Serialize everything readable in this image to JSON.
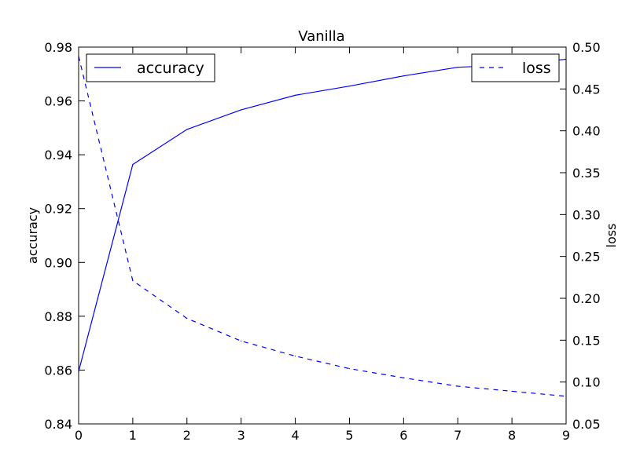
{
  "chart_data": {
    "type": "line",
    "title": "Vanilla",
    "xlabel": "",
    "x": [
      0,
      1,
      2,
      3,
      4,
      5,
      6,
      7,
      8,
      9
    ],
    "x_ticks": [
      "0",
      "1",
      "2",
      "3",
      "4",
      "5",
      "6",
      "7",
      "8",
      "9"
    ],
    "xlim": [
      0,
      9
    ],
    "color": "#0000ff",
    "series": [
      {
        "name": "accuracy",
        "axis": "left",
        "linestyle": "solid",
        "values": [
          0.8595,
          0.9364,
          0.9494,
          0.9567,
          0.9621,
          0.9655,
          0.9693,
          0.9725,
          0.9734,
          0.9755
        ]
      },
      {
        "name": "loss",
        "axis": "right",
        "linestyle": "dashed",
        "values": [
          0.489,
          0.221,
          0.176,
          0.149,
          0.131,
          0.116,
          0.105,
          0.095,
          0.089,
          0.083
        ]
      }
    ],
    "left_axis": {
      "label": "accuracy",
      "ylim": [
        0.84,
        0.98
      ],
      "ticks": [
        "0.84",
        "0.86",
        "0.88",
        "0.90",
        "0.92",
        "0.94",
        "0.96",
        "0.98"
      ]
    },
    "right_axis": {
      "label": "loss",
      "ylim": [
        0.05,
        0.5
      ],
      "ticks": [
        "0.05",
        "0.10",
        "0.15",
        "0.20",
        "0.25",
        "0.30",
        "0.35",
        "0.40",
        "0.45",
        "0.50"
      ]
    },
    "legends": [
      {
        "label": "accuracy",
        "placement": "top-left"
      },
      {
        "label": "loss",
        "placement": "top-right"
      }
    ],
    "grid": false
  }
}
